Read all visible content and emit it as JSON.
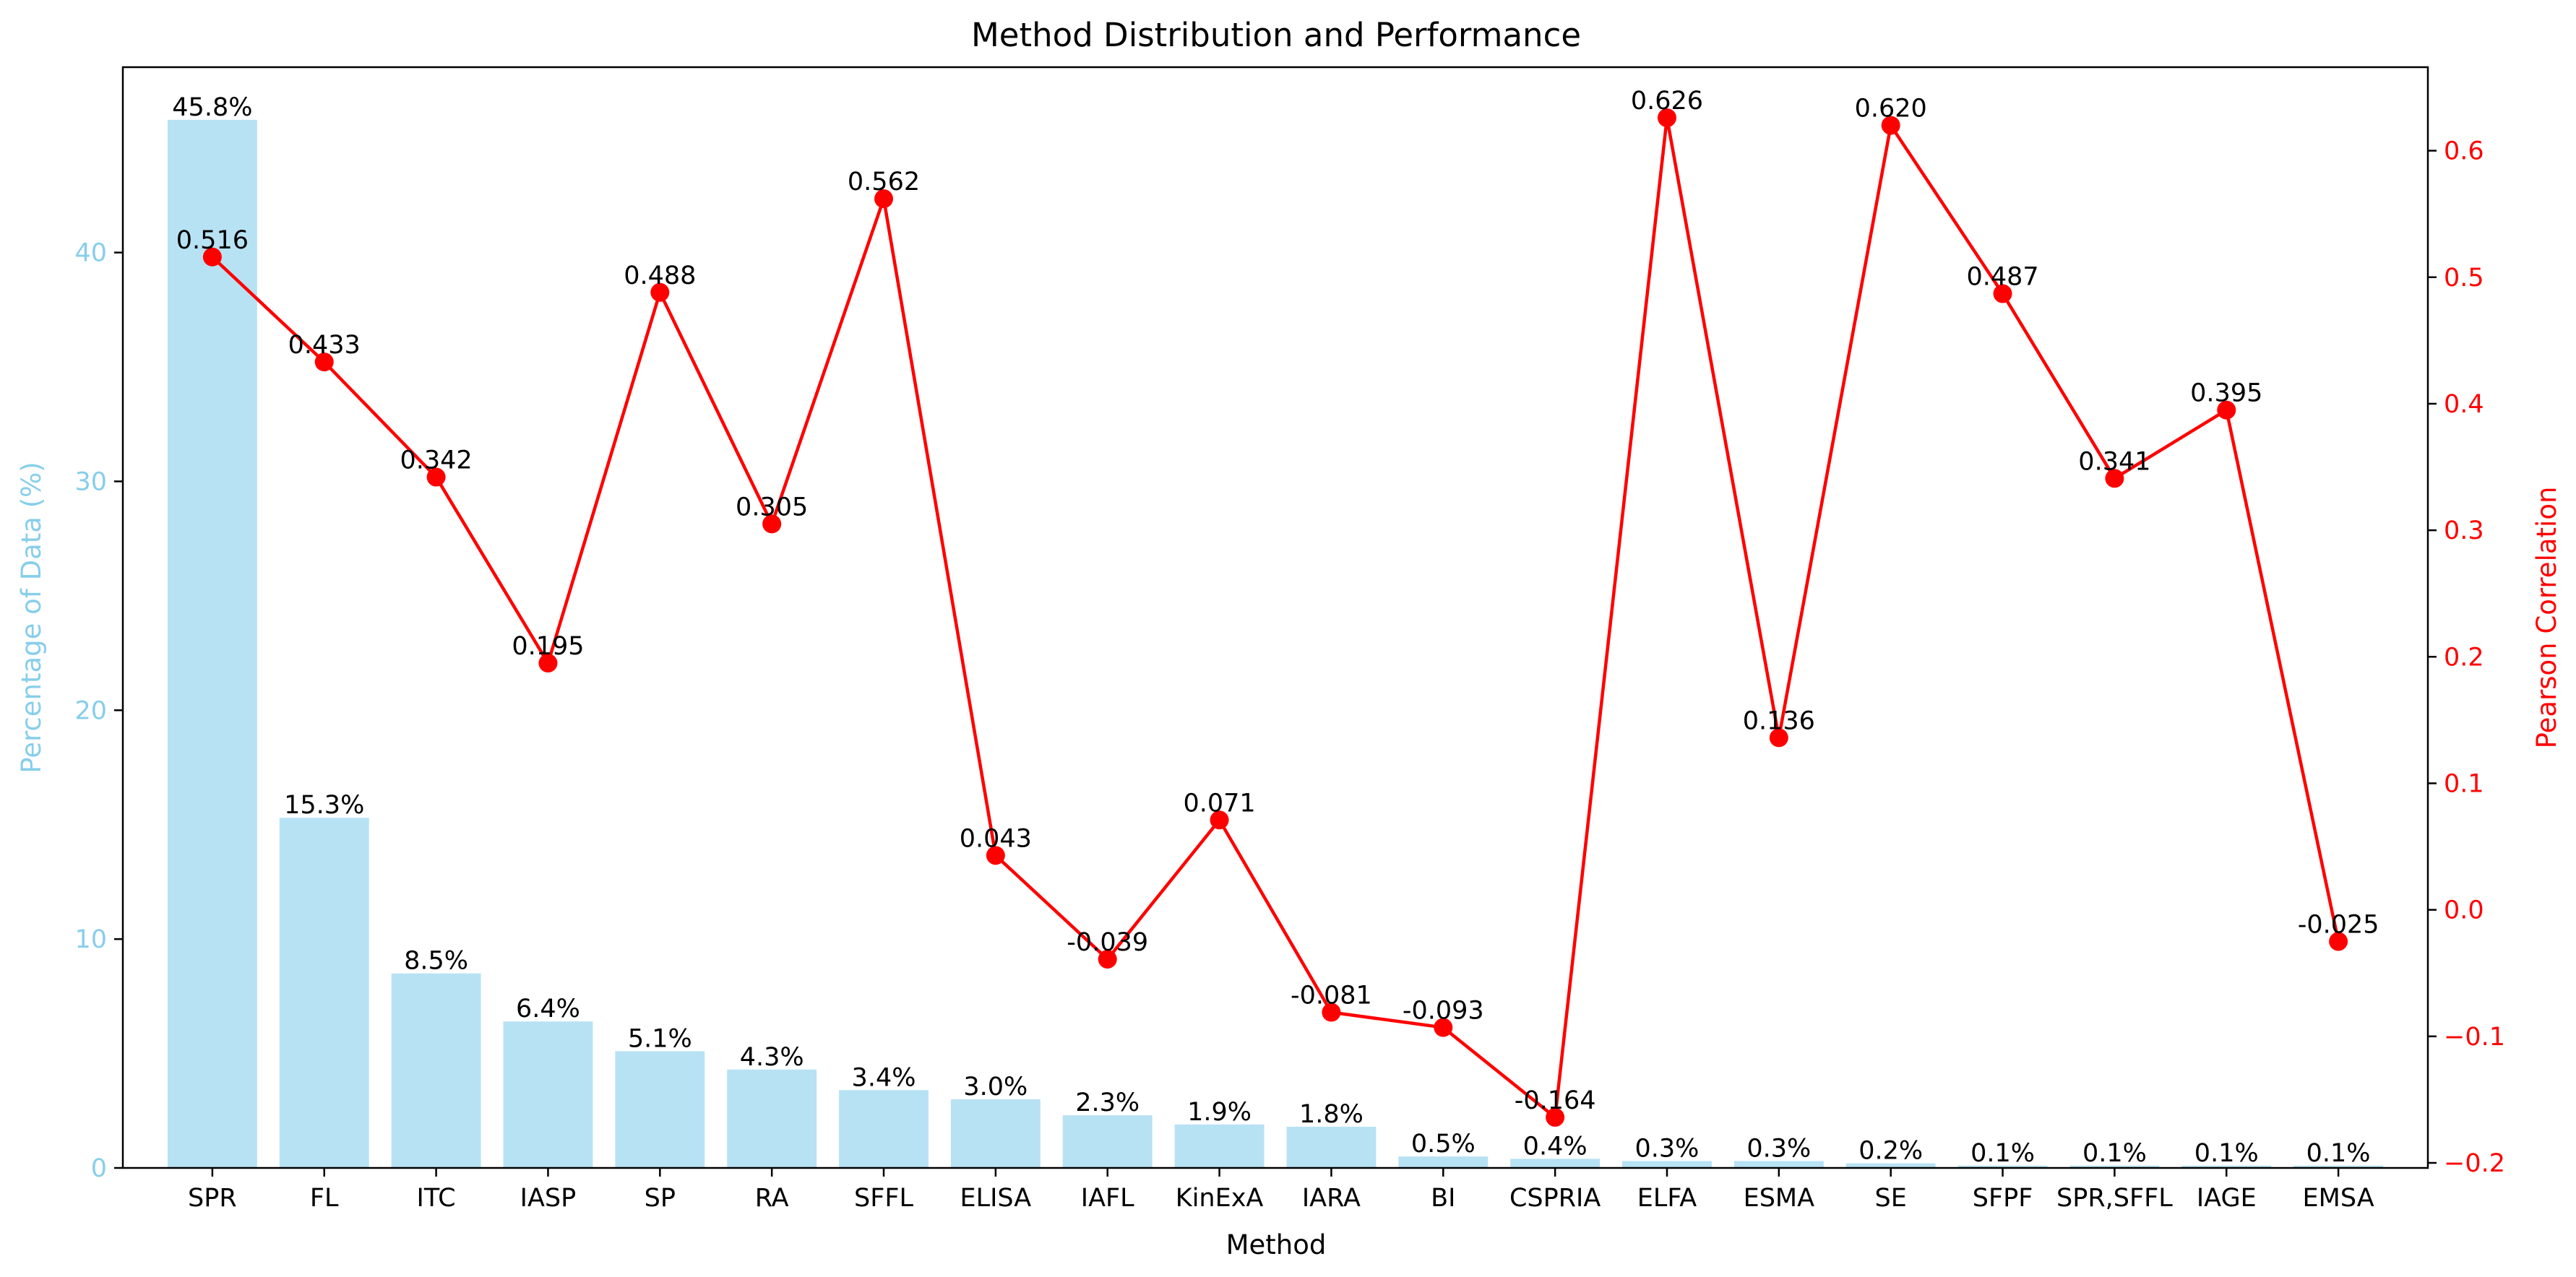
{
  "chart_data": {
    "type": "bar",
    "title": "Method Distribution and Performance",
    "xlabel": "Method",
    "ylabel_left": "Percentage of Data (%)",
    "ylabel_right": "Pearson Correlation",
    "categories": [
      "SPR",
      "FL",
      "ITC",
      "IASP",
      "SP",
      "RA",
      "SFFL",
      "ELISA",
      "IAFL",
      "KinExA",
      "IARA",
      "BI",
      "CSPRIA",
      "ELFA",
      "ESMA",
      "SE",
      "SFPF",
      "SPR,SFFL",
      "IAGE",
      "EMSA"
    ],
    "series": [
      {
        "type": "bar",
        "axis": "left",
        "color": "#87CEEB",
        "values": [
          45.8,
          15.3,
          8.5,
          6.4,
          5.1,
          4.3,
          3.4,
          3.0,
          2.3,
          1.9,
          1.8,
          0.5,
          0.4,
          0.3,
          0.3,
          0.2,
          0.1,
          0.1,
          0.1,
          0.1
        ],
        "labels": [
          "45.8%",
          "15.3%",
          "8.5%",
          "6.4%",
          "5.1%",
          "4.3%",
          "3.4%",
          "3.0%",
          "2.3%",
          "1.9%",
          "1.8%",
          "0.5%",
          "0.4%",
          "0.3%",
          "0.3%",
          "0.2%",
          "0.1%",
          "0.1%",
          "0.1%",
          "0.1%"
        ]
      },
      {
        "type": "line",
        "axis": "right",
        "color": "#FF0000",
        "values": [
          0.516,
          0.433,
          0.342,
          0.195,
          0.488,
          0.305,
          0.562,
          0.043,
          -0.039,
          0.071,
          -0.081,
          -0.093,
          -0.164,
          0.626,
          0.136,
          0.62,
          0.487,
          0.341,
          0.395,
          -0.025
        ],
        "labels": [
          "0.516",
          "0.433",
          "0.342",
          "0.195",
          "0.488",
          "0.305",
          "0.562",
          "0.043",
          "-0.039",
          "0.071",
          "-0.081",
          "-0.093",
          "-0.164",
          "0.626",
          "0.136",
          "0.620",
          "0.487",
          "0.341",
          "0.395",
          "-0.025"
        ]
      }
    ],
    "ylim_left": [
      0,
      48.1
    ],
    "ylim_right": [
      -0.204,
      0.666
    ],
    "left_ticks": [
      0,
      10,
      20,
      30,
      40
    ],
    "left_tick_labels": [
      "0",
      "10",
      "20",
      "30",
      "40"
    ],
    "right_ticks": [
      -0.2,
      -0.1,
      0.0,
      0.1,
      0.2,
      0.3,
      0.4,
      0.5,
      0.6
    ],
    "right_tick_labels": [
      "−0.2",
      "−0.1",
      "0.0",
      "0.1",
      "0.2",
      "0.3",
      "0.4",
      "0.5",
      "0.6"
    ],
    "grid": false,
    "left_axis_color": "#87CEEB",
    "right_axis_color": "#FF0000"
  }
}
